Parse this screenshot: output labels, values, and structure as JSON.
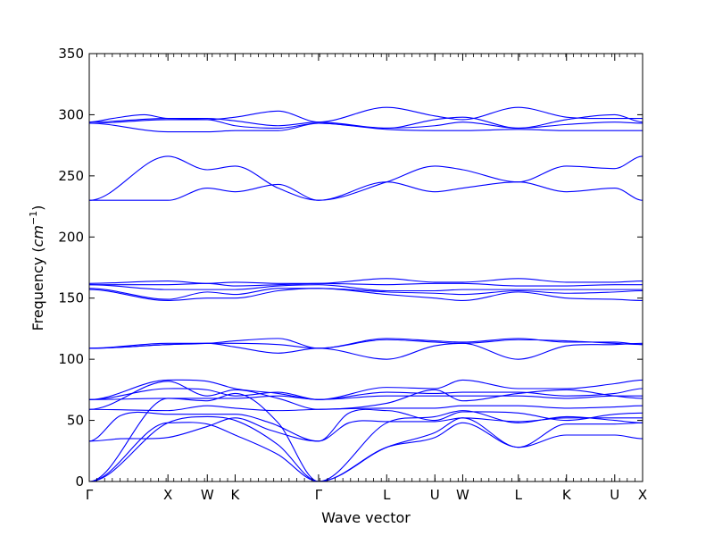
{
  "chart_data": {
    "type": "line",
    "xlabel": "Wave vector",
    "ylabel": "Frequency",
    "ylabel_unit": "cm",
    "ylabel_unit_exp": "−1",
    "ylim": [
      0,
      350
    ],
    "yticks": [
      "0",
      "50",
      "100",
      "150",
      "200",
      "250",
      "300",
      "350"
    ],
    "ytick_values": [
      0,
      50,
      100,
      150,
      200,
      250,
      300,
      350
    ],
    "grid": false,
    "line_color": "#0000ff",
    "high_symmetry_points": [
      {
        "label": "Γ",
        "x": 0.0
      },
      {
        "label": "X",
        "x": 1.0
      },
      {
        "label": "W",
        "x": 1.5
      },
      {
        "label": "K",
        "x": 1.854
      },
      {
        "label": "Γ",
        "x": 2.914
      },
      {
        "label": "L",
        "x": 3.78
      },
      {
        "label": "U",
        "x": 4.392
      },
      {
        "label": "W",
        "x": 4.746
      },
      {
        "label": "L",
        "x": 5.453
      },
      {
        "label": "K",
        "x": 6.065
      },
      {
        "label": "U",
        "x": 6.678
      },
      {
        "label": "X",
        "x": 7.032
      }
    ],
    "xlim": [
      0,
      7.032
    ],
    "series": [
      {
        "x": [
          0,
          1.0,
          1.5,
          1.854,
          2.4,
          2.914,
          3.78,
          4.392,
          4.746,
          5.453,
          6.065,
          6.678,
          7.032
        ],
        "values": [
          0,
          48,
          47,
          38,
          22,
          0,
          28,
          36,
          48,
          28,
          38,
          38,
          35
        ]
      },
      {
        "x": [
          0,
          1.0,
          1.5,
          1.854,
          2.4,
          2.914,
          3.78,
          4.392,
          4.746,
          5.453,
          6.065,
          6.678,
          7.032
        ],
        "values": [
          0,
          48,
          53,
          50,
          30,
          0,
          28,
          40,
          52,
          28,
          47,
          47,
          48
        ]
      },
      {
        "x": [
          0,
          1.0,
          1.5,
          1.854,
          2.4,
          2.914,
          3.78,
          4.392,
          4.746,
          5.453,
          6.065,
          6.678,
          7.032
        ],
        "values": [
          0,
          68,
          66,
          72,
          48,
          0,
          48,
          53,
          58,
          48,
          53,
          50,
          48
        ]
      },
      {
        "x": [
          0,
          0.4,
          1.0,
          1.5,
          1.854,
          2.3,
          2.914,
          3.3,
          3.78,
          4.392,
          4.746,
          5.453,
          6.065,
          6.678,
          7.032
        ],
        "values": [
          33,
          35,
          36,
          45,
          52,
          42,
          33,
          48,
          49,
          49,
          52,
          49,
          52,
          52,
          52
        ]
      },
      {
        "x": [
          0,
          0.4,
          1.0,
          1.5,
          1.854,
          2.3,
          2.914,
          3.3,
          3.78,
          4.392,
          4.746,
          5.453,
          6.065,
          6.678,
          7.032
        ],
        "values": [
          33,
          54,
          55,
          55,
          55,
          48,
          33,
          56,
          58,
          50,
          57,
          56,
          50,
          55,
          56
        ]
      },
      {
        "x": [
          0,
          1.0,
          1.5,
          1.854,
          2.4,
          2.914,
          3.78,
          4.392,
          4.746,
          5.453,
          6.065,
          6.678,
          7.032
        ],
        "values": [
          59,
          58,
          62,
          60,
          58,
          59,
          60,
          60,
          62,
          62,
          60,
          61,
          62
        ]
      },
      {
        "x": [
          0,
          1.0,
          1.5,
          1.854,
          2.4,
          2.914,
          3.78,
          4.392,
          4.746,
          5.453,
          6.065,
          6.678,
          7.032
        ],
        "values": [
          59,
          82,
          70,
          75,
          68,
          59,
          64,
          75,
          66,
          72,
          75,
          70,
          68
        ]
      },
      {
        "x": [
          0,
          1.0,
          1.5,
          1.854,
          2.4,
          2.914,
          3.78,
          4.392,
          4.746,
          5.453,
          6.065,
          6.678,
          7.032
        ],
        "values": [
          67,
          68,
          68,
          68,
          70,
          67,
          70,
          70,
          70,
          70,
          68,
          70,
          70
        ]
      },
      {
        "x": [
          0,
          1.0,
          1.5,
          1.854,
          2.4,
          2.914,
          3.78,
          4.392,
          4.746,
          5.453,
          6.065,
          6.678,
          7.032
        ],
        "values": [
          67,
          76,
          75,
          70,
          73,
          67,
          73,
          72,
          73,
          73,
          70,
          72,
          76
        ]
      },
      {
        "x": [
          0,
          1.0,
          1.5,
          1.854,
          2.4,
          2.914,
          3.78,
          4.392,
          4.746,
          5.453,
          6.065,
          6.678,
          7.032
        ],
        "values": [
          67,
          83,
          82,
          76,
          72,
          67,
          77,
          76,
          83,
          76,
          76,
          80,
          83
        ]
      },
      {
        "x": [
          0,
          1.0,
          1.5,
          1.854,
          2.4,
          2.914,
          3.78,
          4.392,
          4.746,
          5.453,
          6.065,
          6.678,
          7.032
        ],
        "values": [
          109,
          113,
          113,
          110,
          105,
          109,
          100,
          111,
          113,
          100,
          111,
          112,
          113
        ]
      },
      {
        "x": [
          0,
          1.0,
          1.5,
          1.854,
          2.4,
          2.914,
          3.78,
          4.392,
          4.746,
          5.453,
          6.065,
          6.678,
          7.032
        ],
        "values": [
          109,
          112,
          113,
          115,
          117,
          109,
          117,
          115,
          114,
          117,
          114,
          114,
          112
        ]
      },
      {
        "x": [
          0,
          1.0,
          1.5,
          1.854,
          2.4,
          2.914,
          3.78,
          4.392,
          4.746,
          5.453,
          6.065,
          6.678,
          7.032
        ],
        "values": [
          109,
          112,
          113,
          113,
          112,
          109,
          116,
          114,
          113,
          116,
          115,
          113,
          112
        ]
      },
      {
        "x": [
          0,
          1.0,
          1.5,
          1.854,
          2.4,
          2.914,
          3.78,
          4.392,
          4.746,
          5.453,
          6.065,
          6.678,
          7.032
        ],
        "values": [
          157,
          148,
          150,
          150,
          156,
          158,
          153,
          150,
          148,
          155,
          150,
          149,
          148
        ]
      },
      {
        "x": [
          0,
          1.0,
          1.5,
          1.854,
          2.4,
          2.914,
          3.78,
          4.392,
          4.746,
          5.453,
          6.065,
          6.678,
          7.032
        ],
        "values": [
          158,
          149,
          155,
          153,
          158,
          158,
          155,
          154,
          153,
          156,
          154,
          155,
          156
        ]
      },
      {
        "x": [
          0,
          1.0,
          1.5,
          1.854,
          2.4,
          2.914,
          3.78,
          4.392,
          4.746,
          5.453,
          6.065,
          6.678,
          7.032
        ],
        "values": [
          161,
          157,
          157,
          157,
          160,
          161,
          156,
          156,
          157,
          157,
          157,
          157,
          157
        ]
      },
      {
        "x": [
          0,
          1.0,
          1.5,
          1.854,
          2.4,
          2.914,
          3.78,
          4.392,
          4.746,
          5.453,
          6.065,
          6.678,
          7.032
        ],
        "values": [
          161,
          161,
          162,
          160,
          161,
          162,
          161,
          162,
          162,
          160,
          160,
          161,
          161
        ]
      },
      {
        "x": [
          0,
          1.0,
          1.5,
          1.854,
          2.4,
          2.914,
          3.78,
          4.392,
          4.746,
          5.453,
          6.065,
          6.678,
          7.032
        ],
        "values": [
          162,
          164,
          162,
          163,
          162,
          162,
          166,
          163,
          163,
          166,
          163,
          163,
          164
        ]
      },
      {
        "x": [
          0,
          1.0,
          1.5,
          1.854,
          2.4,
          2.914,
          3.78,
          4.392,
          4.746,
          5.453,
          6.065,
          6.678,
          7.032
        ],
        "values": [
          230,
          230,
          240,
          237,
          243,
          230,
          245,
          237,
          240,
          245,
          237,
          240,
          230
        ]
      },
      {
        "x": [
          0,
          1.0,
          1.5,
          1.854,
          2.4,
          2.914,
          3.78,
          4.392,
          4.746,
          5.453,
          6.065,
          6.678,
          7.032
        ],
        "values": [
          230,
          266,
          255,
          258,
          240,
          230,
          245,
          258,
          255,
          245,
          258,
          256,
          266
        ]
      },
      {
        "x": [
          0,
          1.0,
          1.5,
          1.854,
          2.4,
          2.914,
          3.78,
          4.392,
          4.746,
          5.453,
          6.065,
          6.678,
          7.032
        ],
        "values": [
          293,
          286,
          286,
          287,
          287,
          293,
          288,
          287,
          287,
          288,
          287,
          287,
          287
        ]
      },
      {
        "x": [
          0,
          1.0,
          1.5,
          1.854,
          2.4,
          2.914,
          3.78,
          4.392,
          4.746,
          5.453,
          6.065,
          6.678,
          7.032
        ],
        "values": [
          293,
          296,
          296,
          291,
          289,
          293,
          289,
          291,
          294,
          289,
          292,
          294,
          293
        ]
      },
      {
        "x": [
          0,
          1.0,
          1.5,
          1.854,
          2.4,
          2.914,
          3.78,
          4.392,
          4.746,
          5.453,
          6.065,
          6.678,
          7.032
        ],
        "values": [
          294,
          297,
          296,
          298,
          303,
          294,
          306,
          299,
          296,
          306,
          298,
          297,
          297
        ]
      },
      {
        "x": [
          0,
          0.3,
          0.7,
          1.0,
          1.5,
          1.854,
          2.4,
          2.914,
          3.78,
          4.392,
          4.746,
          5.453,
          6.065,
          6.678,
          7.032
        ],
        "values": [
          294,
          297,
          300,
          297,
          297,
          295,
          291,
          294,
          289,
          296,
          298,
          289,
          296,
          300,
          294
        ]
      }
    ]
  }
}
